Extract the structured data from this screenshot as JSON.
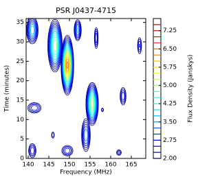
{
  "chart_data": {
    "type": "contour",
    "title": "PSR J0437-4715",
    "xlabel": "Frequency (MHz)",
    "ylabel": "Time (minutes)",
    "colorbar_label": "Flux Density (Janskys)",
    "colormap": "jet",
    "xlim": [
      139.5,
      168.5
    ],
    "ylim": [
      0,
      36
    ],
    "xticks": [
      140,
      145,
      150,
      155,
      160,
      165
    ],
    "yticks": [
      0,
      5,
      10,
      15,
      20,
      25,
      30,
      35
    ],
    "clim": [
      2,
      7.75
    ],
    "levels": [
      2,
      2.25,
      2.5,
      2.75,
      3,
      3.25,
      3.5,
      3.75,
      4,
      4.25,
      4.5,
      4.75,
      5,
      5.25,
      5.5,
      5.75,
      6,
      6.25,
      6.5,
      6.75,
      7,
      7.25,
      7.5
    ],
    "cticks": [
      {
        "value": 2,
        "label": "2.00"
      },
      {
        "value": 2.75,
        "label": "2.75"
      },
      {
        "value": 3.5,
        "label": "3.50"
      },
      {
        "value": 4.25,
        "label": "4.25"
      },
      {
        "value": 5,
        "label": "5.00"
      },
      {
        "value": 5.75,
        "label": "5.75"
      },
      {
        "value": 6.5,
        "label": "6.50"
      },
      {
        "value": 7.25,
        "label": "7.25"
      }
    ],
    "blobs": [
      {
        "x": 141,
        "y": 33,
        "sx": 1.2,
        "sy": 3,
        "peak": 4
      },
      {
        "x": 146.5,
        "y": 29,
        "sx": 1.3,
        "sy": 5,
        "peak": 5
      },
      {
        "x": 149.5,
        "y": 24,
        "sx": 1.0,
        "sy": 5,
        "peak": 6.6
      },
      {
        "x": 152,
        "y": 33,
        "sx": 0.8,
        "sy": 2.5,
        "peak": 3.6
      },
      {
        "x": 156.5,
        "y": 31,
        "sx": 0.5,
        "sy": 3,
        "peak": 3
      },
      {
        "x": 155.5,
        "y": 14,
        "sx": 1.1,
        "sy": 4,
        "peak": 5.2
      },
      {
        "x": 154,
        "y": 6,
        "sx": 1.0,
        "sy": 4,
        "peak": 3.5
      },
      {
        "x": 149.5,
        "y": 2,
        "sx": 1.5,
        "sy": 1.5,
        "peak": 3
      },
      {
        "x": 163,
        "y": 16,
        "sx": 0.8,
        "sy": 2.5,
        "peak": 3
      },
      {
        "x": 167,
        "y": 29,
        "sx": 0.6,
        "sy": 2.5,
        "peak": 2.8
      },
      {
        "x": 141.5,
        "y": 13,
        "sx": 1.8,
        "sy": 1.5,
        "peak": 3
      },
      {
        "x": 158,
        "y": 12.5,
        "sx": 0.4,
        "sy": 0.7,
        "peak": 2.5
      },
      {
        "x": 162,
        "y": 1.5,
        "sx": 0.8,
        "sy": 1,
        "peak": 2.6
      },
      {
        "x": 141,
        "y": 2,
        "sx": 1,
        "sy": 2,
        "peak": 3
      },
      {
        "x": 146,
        "y": 6,
        "sx": 0.5,
        "sy": 1.2,
        "peak": 2.5
      }
    ]
  }
}
